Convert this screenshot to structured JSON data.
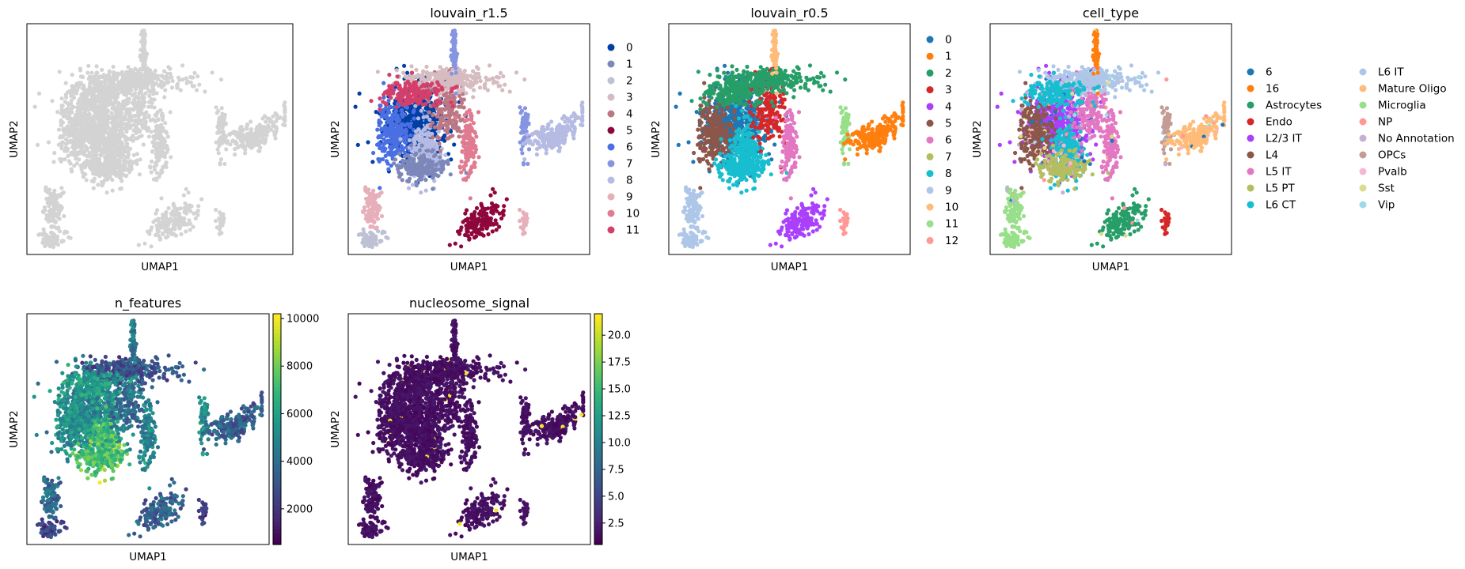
{
  "chart_data": [
    {
      "id": "panel_plain",
      "type": "scatter",
      "title": "",
      "xlabel": "UMAP1",
      "ylabel": "UMAP2",
      "color_mode": "uniform",
      "point_color": "#d3d3d3"
    },
    {
      "id": "panel_louvain_r1_5",
      "type": "scatter",
      "title": "louvain_r1.5",
      "xlabel": "UMAP1",
      "ylabel": "UMAP2",
      "color_mode": "categorical",
      "legend_position": "right",
      "categories": [
        {
          "label": "0",
          "color": "#023fa5"
        },
        {
          "label": "1",
          "color": "#7d87b9"
        },
        {
          "label": "2",
          "color": "#bec1d4"
        },
        {
          "label": "3",
          "color": "#d6bcc0"
        },
        {
          "label": "4",
          "color": "#bb7784"
        },
        {
          "label": "5",
          "color": "#8e063b"
        },
        {
          "label": "6",
          "color": "#4a6fe3"
        },
        {
          "label": "7",
          "color": "#8595e1"
        },
        {
          "label": "8",
          "color": "#b5bbe3"
        },
        {
          "label": "9",
          "color": "#e6afb9"
        },
        {
          "label": "10",
          "color": "#e07b91"
        },
        {
          "label": "11",
          "color": "#d33f6a"
        }
      ]
    },
    {
      "id": "panel_louvain_r0_5",
      "type": "scatter",
      "title": "louvain_r0.5",
      "xlabel": "UMAP1",
      "ylabel": "UMAP2",
      "color_mode": "categorical",
      "legend_position": "right",
      "categories": [
        {
          "label": "0",
          "color": "#1f77b4"
        },
        {
          "label": "1",
          "color": "#ff7f0e"
        },
        {
          "label": "2",
          "color": "#279e68"
        },
        {
          "label": "3",
          "color": "#d62728"
        },
        {
          "label": "4",
          "color": "#aa40fc"
        },
        {
          "label": "5",
          "color": "#8c564b"
        },
        {
          "label": "6",
          "color": "#e377c2"
        },
        {
          "label": "7",
          "color": "#b5bd61"
        },
        {
          "label": "8",
          "color": "#17becf"
        },
        {
          "label": "9",
          "color": "#aec7e8"
        },
        {
          "label": "10",
          "color": "#ffbb78"
        },
        {
          "label": "11",
          "color": "#98df8a"
        },
        {
          "label": "12",
          "color": "#ff9896"
        }
      ]
    },
    {
      "id": "panel_cell_type",
      "type": "scatter",
      "title": "cell_type",
      "xlabel": "UMAP1",
      "ylabel": "UMAP2",
      "color_mode": "categorical",
      "legend_position": "right (two columns)",
      "categories": [
        {
          "label": "6",
          "color": "#1f77b4"
        },
        {
          "label": "16",
          "color": "#ff7f0e"
        },
        {
          "label": "Astrocytes",
          "color": "#279e68"
        },
        {
          "label": "Endo",
          "color": "#d62728"
        },
        {
          "label": "L2/3 IT",
          "color": "#aa40fc"
        },
        {
          "label": "L4",
          "color": "#8c564b"
        },
        {
          "label": "L5 IT",
          "color": "#e377c2"
        },
        {
          "label": "L5 PT",
          "color": "#b5bd61"
        },
        {
          "label": "L6 CT",
          "color": "#17becf"
        },
        {
          "label": "L6 IT",
          "color": "#aec7e8"
        },
        {
          "label": "Mature Oligo",
          "color": "#ffbb78"
        },
        {
          "label": "Microglia",
          "color": "#98df8a"
        },
        {
          "label": "NP",
          "color": "#ff9896"
        },
        {
          "label": "No Annotation",
          "color": "#c5b0d5"
        },
        {
          "label": "OPCs",
          "color": "#c49c94"
        },
        {
          "label": "Pvalb",
          "color": "#f7b6d2"
        },
        {
          "label": "Sst",
          "color": "#dbdb8d"
        },
        {
          "label": "Vip",
          "color": "#9edae5"
        }
      ]
    },
    {
      "id": "panel_n_features",
      "type": "scatter",
      "title": "n_features",
      "xlabel": "UMAP1",
      "ylabel": "UMAP2",
      "color_mode": "continuous",
      "colormap": "viridis",
      "colorbar": {
        "min": 500,
        "max": 10200,
        "ticks": [
          2000,
          4000,
          6000,
          8000,
          10000
        ]
      }
    },
    {
      "id": "panel_nucleosome_signal",
      "type": "scatter",
      "title": "nucleosome_signal",
      "xlabel": "UMAP1",
      "ylabel": "UMAP2",
      "color_mode": "continuous",
      "colormap": "viridis",
      "colorbar": {
        "min": 0.5,
        "max": 22,
        "ticks": [
          2.5,
          5.0,
          7.5,
          10.0,
          12.5,
          15.0,
          17.5,
          20.0
        ]
      }
    }
  ]
}
